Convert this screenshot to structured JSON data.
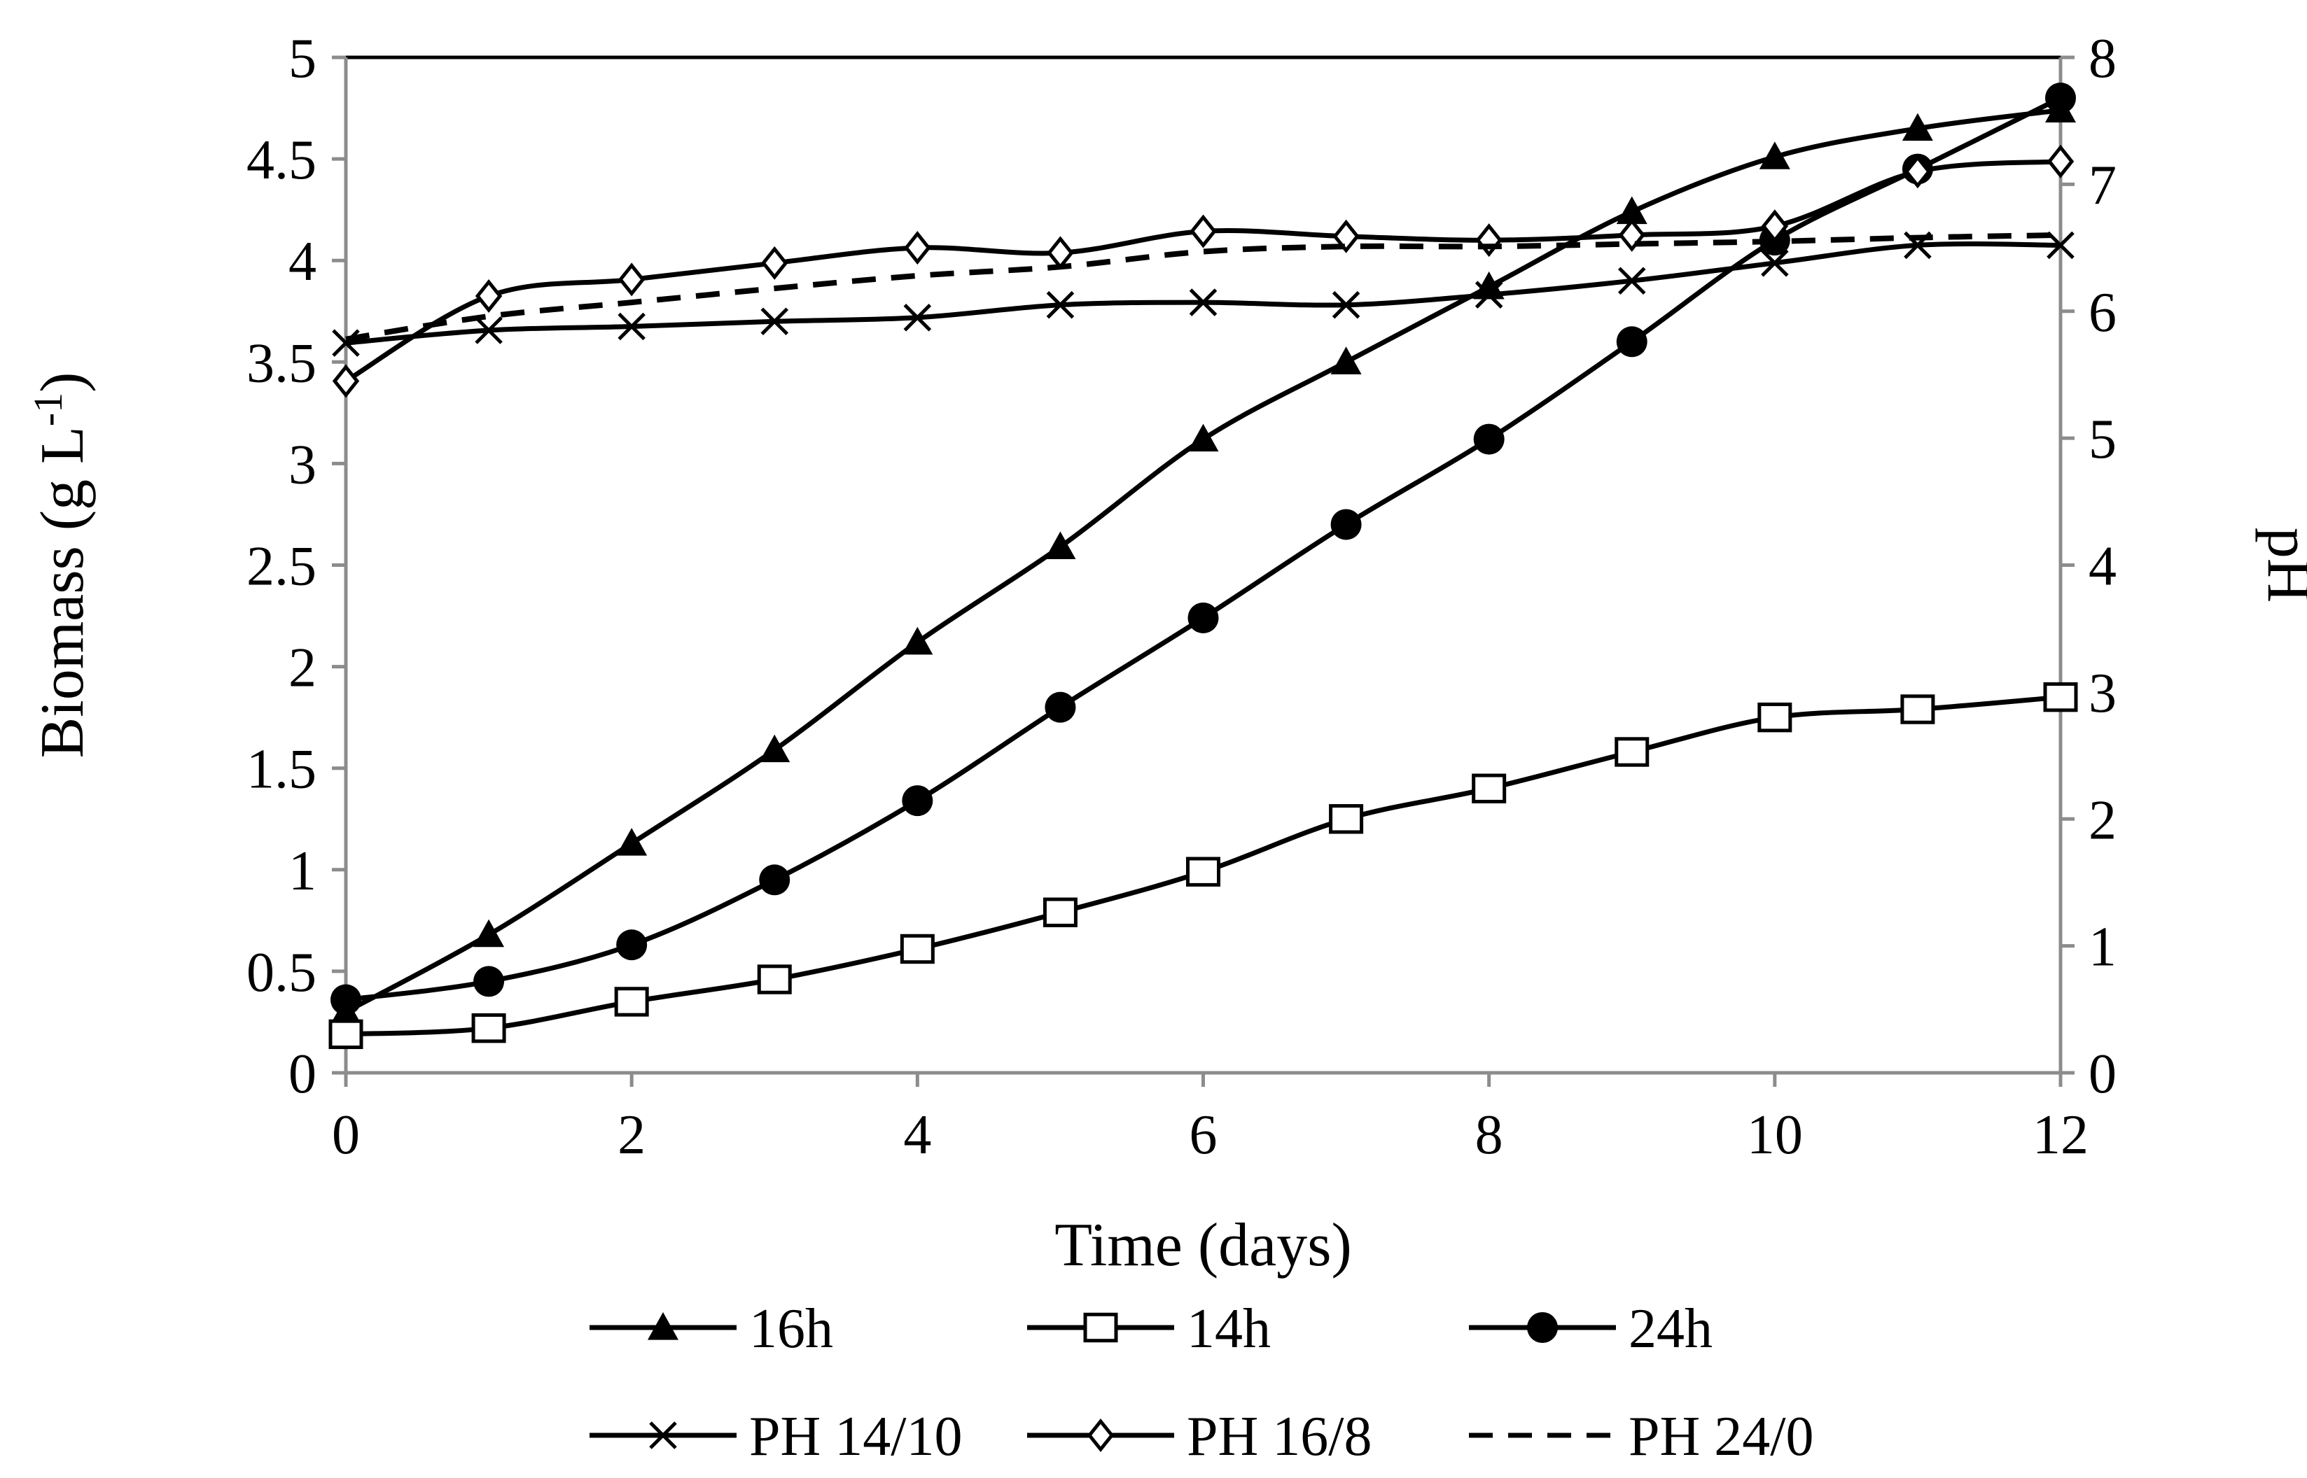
{
  "chart_data": {
    "type": "line",
    "title": "",
    "xlabel": "Time (days)",
    "ylabel": "Biomass (g L-1)",
    "ylabel_parts": {
      "main": "Biomass (g L",
      "sup": "-1",
      "close": ")"
    },
    "y2label": "pH",
    "xlim": [
      0,
      12
    ],
    "ylim": [
      0,
      5
    ],
    "y2lim": [
      0,
      8
    ],
    "x_ticks": [
      0,
      2,
      4,
      6,
      8,
      10,
      12
    ],
    "y_ticks": [
      0,
      0.5,
      1,
      1.5,
      2,
      2.5,
      3,
      3.5,
      4,
      4.5,
      5
    ],
    "y2_ticks": [
      0,
      1,
      2,
      3,
      4,
      5,
      6,
      7,
      8
    ],
    "grid": false,
    "legend_position": "bottom",
    "x": [
      0,
      1,
      2,
      3,
      4,
      5,
      6,
      7,
      8,
      9,
      10,
      11,
      12
    ],
    "series": [
      {
        "name": "16h",
        "axis": "left",
        "marker": "triangle",
        "dash": "solid",
        "values": [
          0.3,
          0.68,
          1.13,
          1.59,
          2.12,
          2.59,
          3.12,
          3.5,
          3.87,
          4.24,
          4.51,
          4.65,
          4.74
        ]
      },
      {
        "name": "14h",
        "axis": "left",
        "marker": "square-open",
        "dash": "solid",
        "values": [
          0.19,
          0.22,
          0.35,
          0.46,
          0.61,
          0.79,
          0.99,
          1.25,
          1.4,
          1.58,
          1.75,
          1.79,
          1.85
        ]
      },
      {
        "name": "24h",
        "axis": "left",
        "marker": "circle",
        "dash": "solid",
        "values": [
          0.36,
          0.45,
          0.63,
          0.95,
          1.34,
          1.8,
          2.24,
          2.7,
          3.12,
          3.6,
          4.1,
          4.45,
          4.8
        ]
      },
      {
        "name": "PH 14/10",
        "axis": "right",
        "marker": "x",
        "dash": "solid",
        "values": [
          5.75,
          5.85,
          5.88,
          5.92,
          5.95,
          6.05,
          6.07,
          6.05,
          6.13,
          6.24,
          6.38,
          6.52,
          6.52
        ]
      },
      {
        "name": "PH 16/8",
        "axis": "right",
        "marker": "diamond-open",
        "dash": "solid",
        "values": [
          5.45,
          6.12,
          6.25,
          6.38,
          6.5,
          6.46,
          6.63,
          6.59,
          6.56,
          6.6,
          6.67,
          7.1,
          7.18
        ]
      },
      {
        "name": "PH 24/0",
        "axis": "right",
        "marker": "none",
        "dash": "dashed",
        "values": [
          5.78,
          5.96,
          6.07,
          6.18,
          6.28,
          6.35,
          6.47,
          6.51,
          6.51,
          6.53,
          6.55,
          6.58,
          6.6
        ]
      }
    ]
  }
}
